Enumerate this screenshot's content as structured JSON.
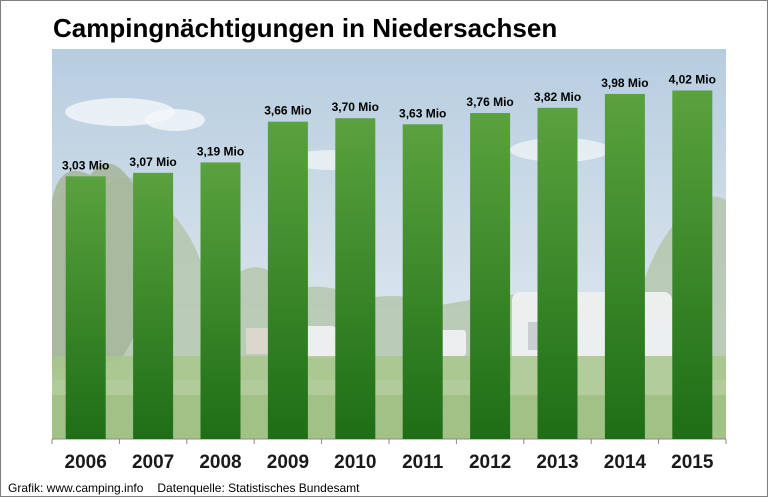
{
  "title": "Campingnächtigungen in Niedersachsen",
  "footer": {
    "credit": "Grafik: www.camping.info",
    "source": "Datenquelle:  Statistisches Bundesamt"
  },
  "colors": {
    "bar_top": "#5aa23e",
    "bar_bottom": "#1e6e16",
    "sky_top": "#b7cde0",
    "sky_bottom": "#e9eff2",
    "grass": "#a8c68c",
    "trees": "#8fae85"
  },
  "chart_data": {
    "type": "bar",
    "title": "Campingnächtigungen in Niedersachsen",
    "categories": [
      "2006",
      "2007",
      "2008",
      "2009",
      "2010",
      "2011",
      "2012",
      "2013",
      "2014",
      "2015"
    ],
    "values": [
      3.03,
      3.07,
      3.19,
      3.66,
      3.7,
      3.63,
      3.76,
      3.82,
      3.98,
      4.02
    ],
    "data_labels": [
      "3,03 Mio",
      "3,07 Mio",
      "3,19 Mio",
      "3,66 Mio",
      "3,70 Mio",
      "3,63 Mio",
      "3,76 Mio",
      "3,82 Mio",
      "3,98 Mio",
      "4,02 Mio"
    ],
    "unit": "Mio",
    "xlabel": "",
    "ylabel": "",
    "grid": false,
    "legend": "none"
  }
}
